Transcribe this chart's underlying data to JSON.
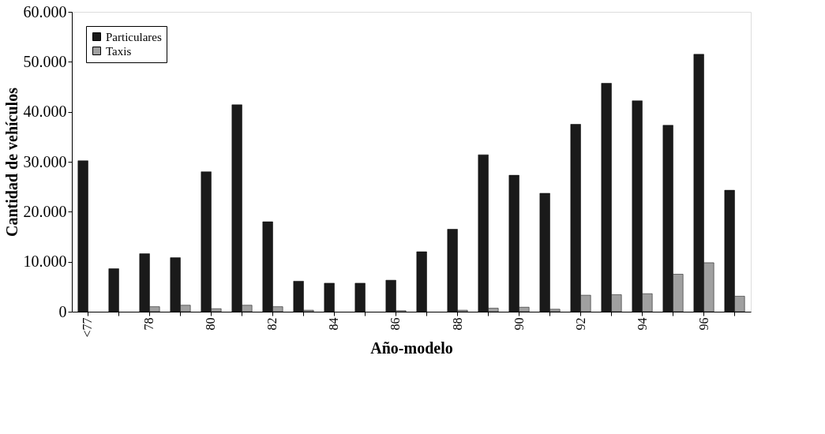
{
  "chart_data": {
    "type": "bar",
    "xlabel": "Año-modelo",
    "ylabel": "Cantidad de vehículos",
    "categories": [
      "<77",
      null,
      "78",
      null,
      "80",
      null,
      "82",
      null,
      "84",
      null,
      "86",
      null,
      "88",
      null,
      "90",
      null,
      "92",
      null,
      "94",
      null,
      "96",
      null
    ],
    "series": [
      {
        "name": "Particulares",
        "color": "#1a1a1a",
        "values": [
          30200,
          8600,
          11600,
          10800,
          28000,
          41400,
          18000,
          6100,
          5700,
          5700,
          6300,
          12000,
          16500,
          31400,
          27300,
          23700,
          37500,
          45700,
          42200,
          37300,
          51500,
          24300
        ]
      },
      {
        "name": "Taxis",
        "color": "#a0a0a0",
        "values": [
          null,
          null,
          1000,
          1300,
          600,
          1300,
          1000,
          300,
          null,
          null,
          200,
          null,
          300,
          700,
          900,
          500,
          3300,
          3400,
          3600,
          7500,
          9800,
          3100
        ]
      }
    ],
    "ylim": [
      0,
      60000
    ],
    "yticks": [
      {
        "value": 0,
        "label": "0"
      },
      {
        "value": 10000,
        "label": "10.000"
      },
      {
        "value": 20000,
        "label": "20.000"
      },
      {
        "value": 30000,
        "label": "30.000"
      },
      {
        "value": 40000,
        "label": "40.000"
      },
      {
        "value": 50000,
        "label": "50.000"
      },
      {
        "value": 60000,
        "label": "60.000"
      }
    ],
    "legend": "top left",
    "grid": false
  }
}
